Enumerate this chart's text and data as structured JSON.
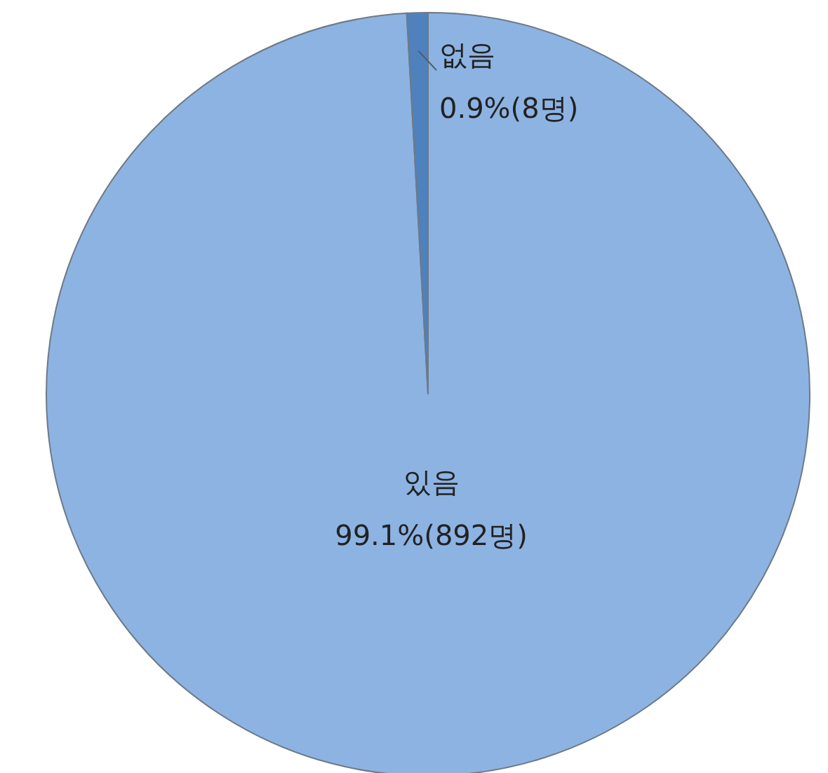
{
  "chart_data": {
    "type": "pie",
    "categories": [
      "있음",
      "없음"
    ],
    "values": [
      892,
      8
    ],
    "value_labels": [
      "99.1%(892명)",
      "0.9%(8명)"
    ],
    "colors": [
      "#8db3e2",
      "#4f81bd"
    ],
    "legend": false
  }
}
